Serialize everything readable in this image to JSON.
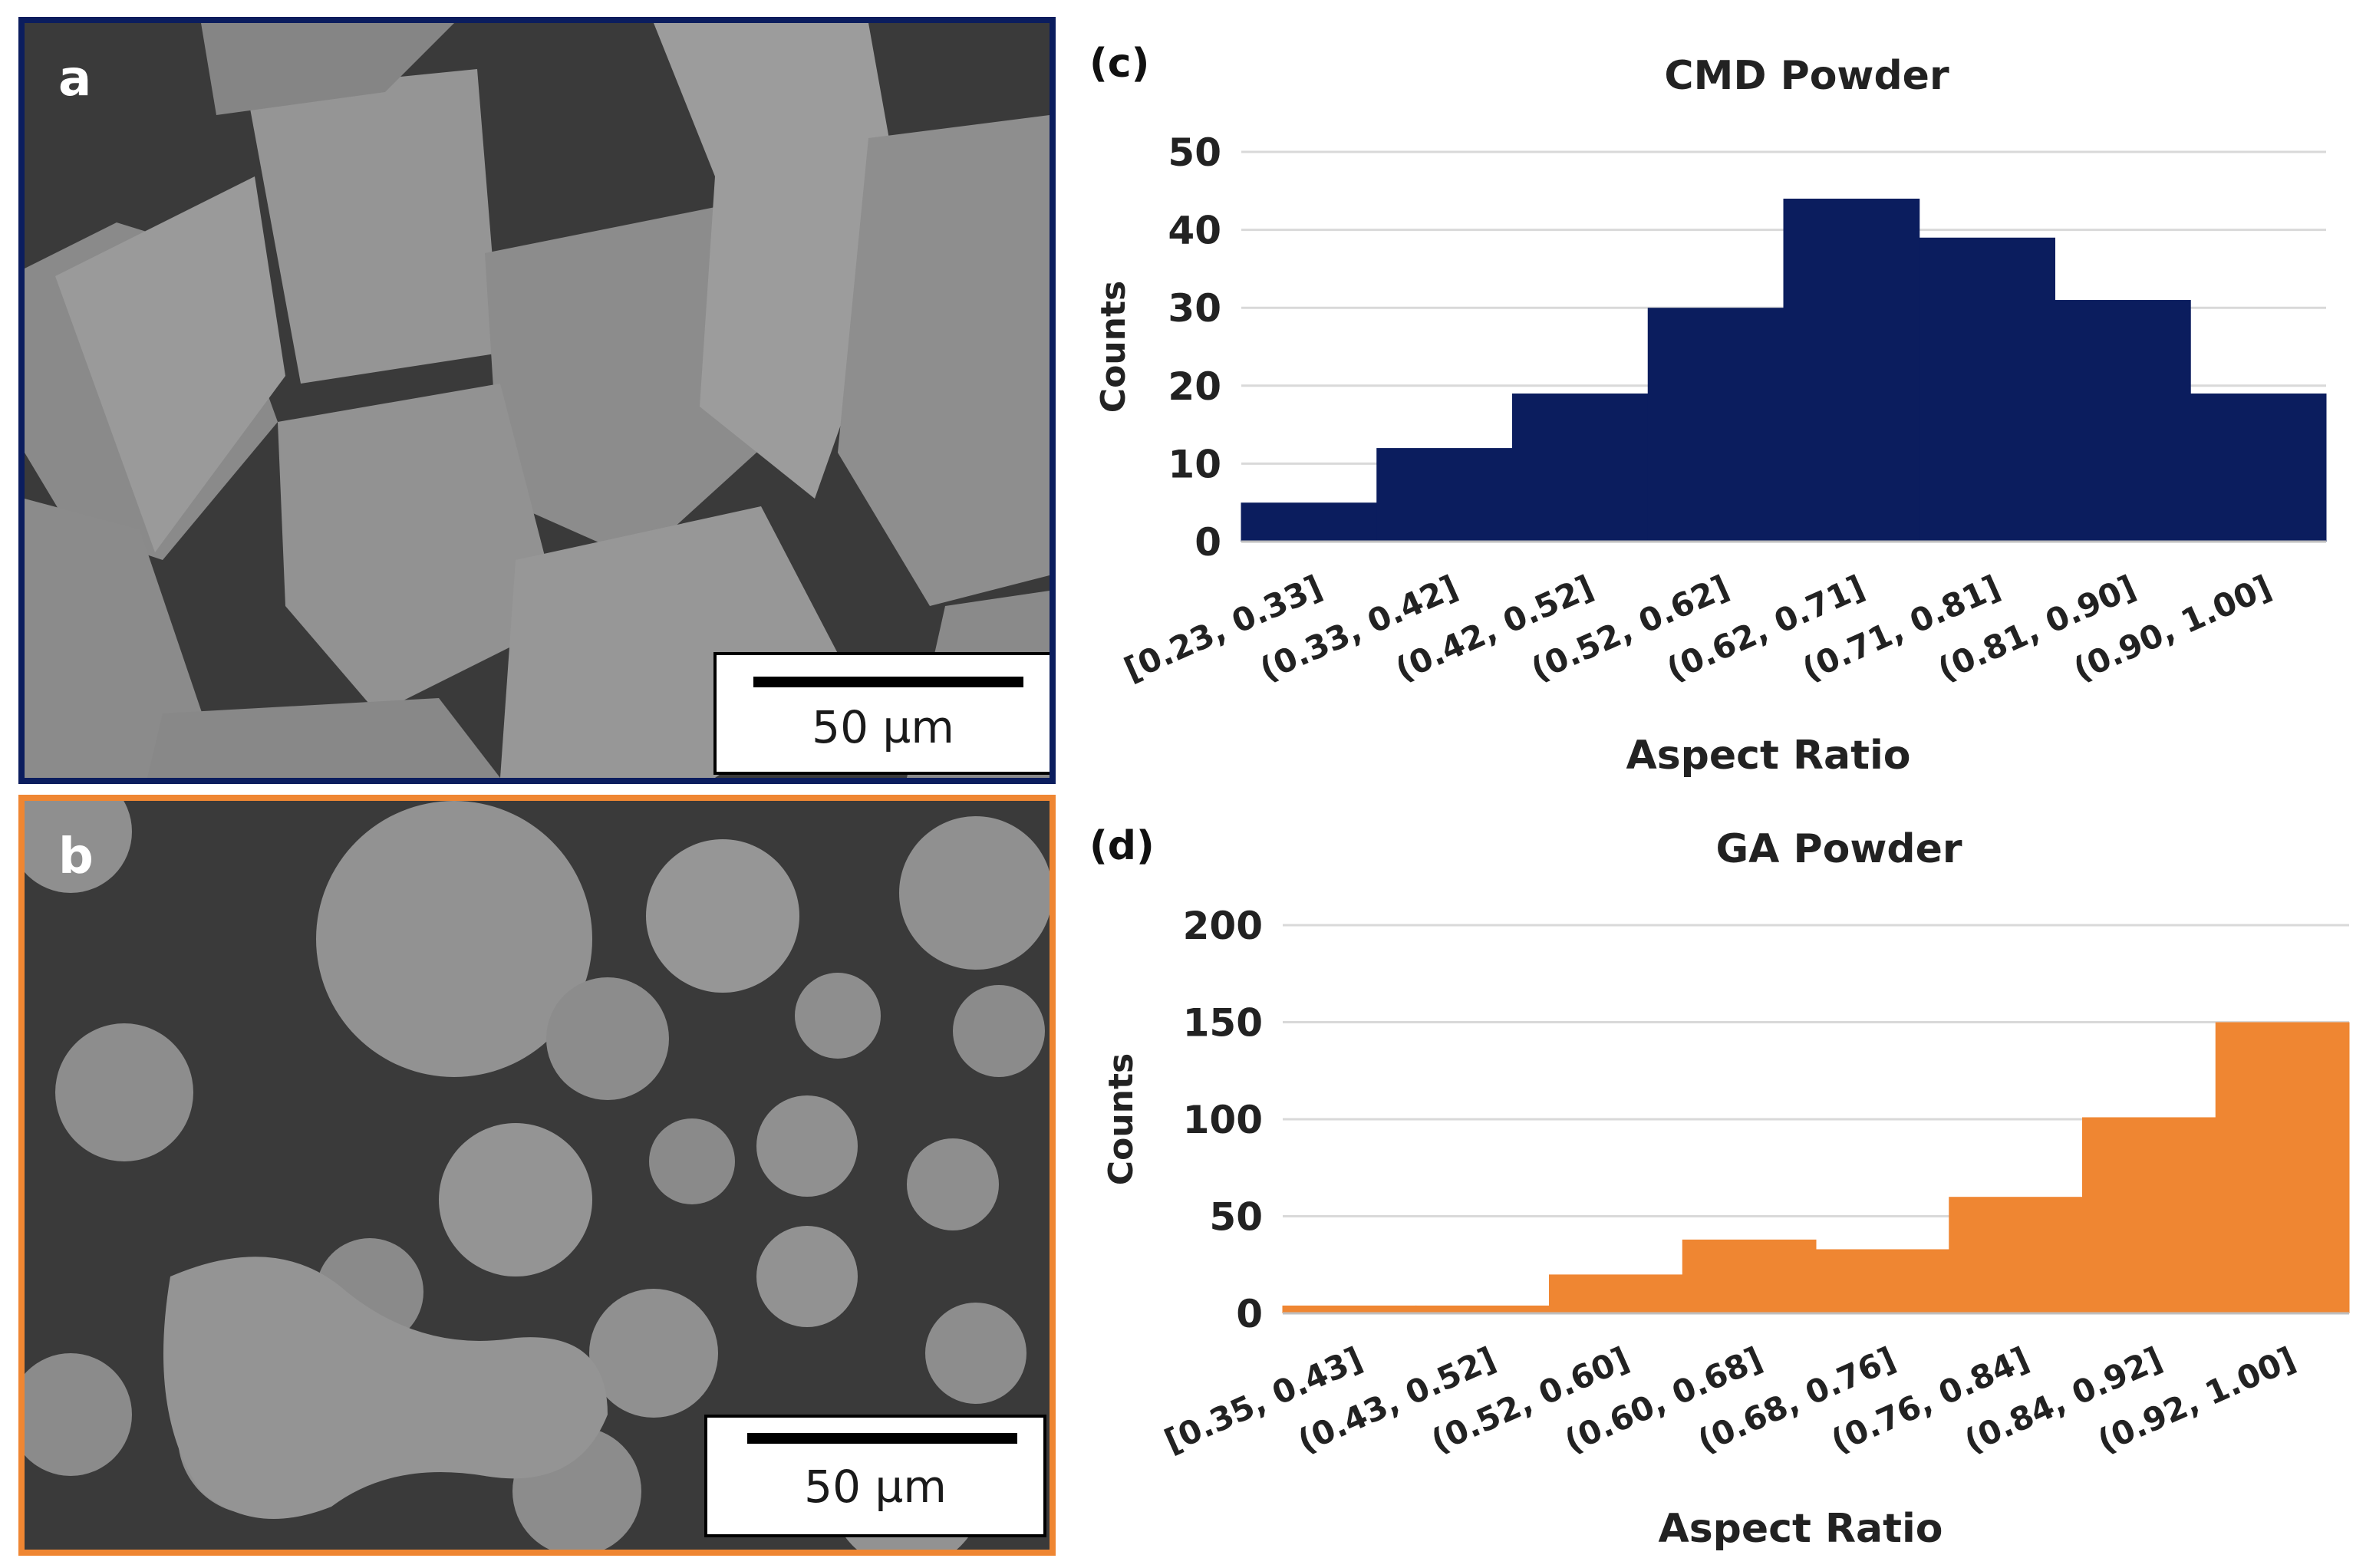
{
  "panels": {
    "a": {
      "letter": "a",
      "scale_label": "50 µm",
      "border_color": "#0b1d5e"
    },
    "b": {
      "letter": "b",
      "scale_label": "50 µm",
      "border_color": "#ef8632"
    }
  },
  "chart_data": [
    {
      "panel_label": "(c)",
      "type": "bar",
      "title": "CMD Powder",
      "xlabel": "Aspect Ratio",
      "ylabel": "Counts",
      "categories": [
        "[0.23, 0.33]",
        "(0.33, 0.42]",
        "(0.42, 0.52]",
        "(0.52, 0.62]",
        "(0.62, 0.71]",
        "(0.71, 0.81]",
        "(0.81, 0.90]",
        "(0.90, 1.00]"
      ],
      "values": [
        5,
        12,
        19,
        30,
        44,
        39,
        31,
        19
      ],
      "ylim": [
        0,
        50
      ],
      "yticks": [
        0,
        10,
        20,
        30,
        40,
        50
      ],
      "grid": true,
      "color": "#0b1d5e"
    },
    {
      "panel_label": "(d)",
      "type": "bar",
      "title": "GA Powder",
      "xlabel": "Aspect Ratio",
      "ylabel": "Counts",
      "categories": [
        "[0.35, 0.43]",
        "(0.43, 0.52]",
        "(0.52, 0.60]",
        "(0.60, 0.68]",
        "(0.68, 0.76]",
        "(0.76, 0.84]",
        "(0.84, 0.92]",
        "(0.92, 1.00]"
      ],
      "values": [
        4,
        4,
        20,
        38,
        33,
        60,
        101,
        150
      ],
      "ylim": [
        0,
        200
      ],
      "yticks": [
        0,
        50,
        100,
        150,
        200
      ],
      "grid": true,
      "color": "#ef8632"
    }
  ]
}
